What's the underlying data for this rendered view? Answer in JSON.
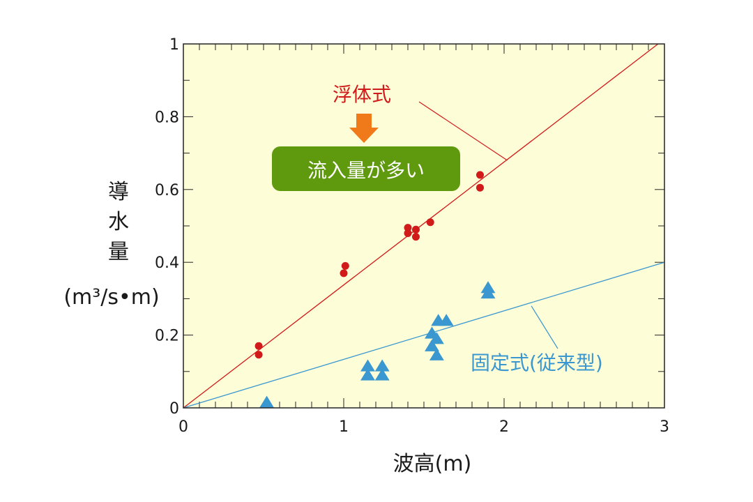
{
  "chart_data": {
    "type": "scatter",
    "xlabel": "波高(m)",
    "ylabel_lines": [
      "導",
      "水",
      "量"
    ],
    "ylabel_unit": "(m³/s•m)",
    "xlim": [
      0,
      3
    ],
    "ylim": [
      0,
      1
    ],
    "x_ticks": [
      "0",
      "1",
      "2",
      "3"
    ],
    "y_ticks": [
      "0",
      "0.2",
      "0.4",
      "0.6",
      "0.8",
      "1"
    ],
    "grid": false,
    "series": [
      {
        "name": "浮体式",
        "marker": "circle",
        "color": "#d11a1a",
        "points": [
          [
            0.47,
            0.17
          ],
          [
            0.47,
            0.146
          ],
          [
            1.01,
            0.39
          ],
          [
            1.0,
            0.37
          ],
          [
            1.4,
            0.495
          ],
          [
            1.4,
            0.48
          ],
          [
            1.45,
            0.49
          ],
          [
            1.45,
            0.47
          ],
          [
            1.54,
            0.51
          ],
          [
            1.85,
            0.64
          ],
          [
            1.85,
            0.605
          ]
        ]
      },
      {
        "name": "固定式(従来型)",
        "marker": "triangle",
        "color": "#3a97cf",
        "points": [
          [
            0.52,
            0.015
          ],
          [
            1.15,
            0.115
          ],
          [
            1.15,
            0.09
          ],
          [
            1.24,
            0.115
          ],
          [
            1.24,
            0.09
          ],
          [
            1.55,
            0.205
          ],
          [
            1.55,
            0.17
          ],
          [
            1.59,
            0.24
          ],
          [
            1.64,
            0.24
          ],
          [
            1.58,
            0.19
          ],
          [
            1.58,
            0.145
          ],
          [
            1.9,
            0.33
          ],
          [
            1.9,
            0.315
          ]
        ]
      }
    ],
    "trend_lines": [
      {
        "series": "浮体式",
        "from": [
          0,
          0
        ],
        "to": [
          2.96,
          1.0
        ],
        "color": "#d11a1a"
      },
      {
        "series": "固定式(従来型)",
        "from": [
          0,
          0
        ],
        "to": [
          3.0,
          0.4
        ],
        "color": "#3a97cf"
      }
    ],
    "annotations": {
      "floating_label": "浮体式",
      "fixed_label": "固定式(従来型)",
      "callout": "流入量が多い"
    },
    "colors": {
      "plot_background": "#fdfdd8",
      "floating": "#d11a1a",
      "fixed": "#3a97cf",
      "arrow": "#f07a1a",
      "callout_bg": "#5f9a0e"
    }
  }
}
